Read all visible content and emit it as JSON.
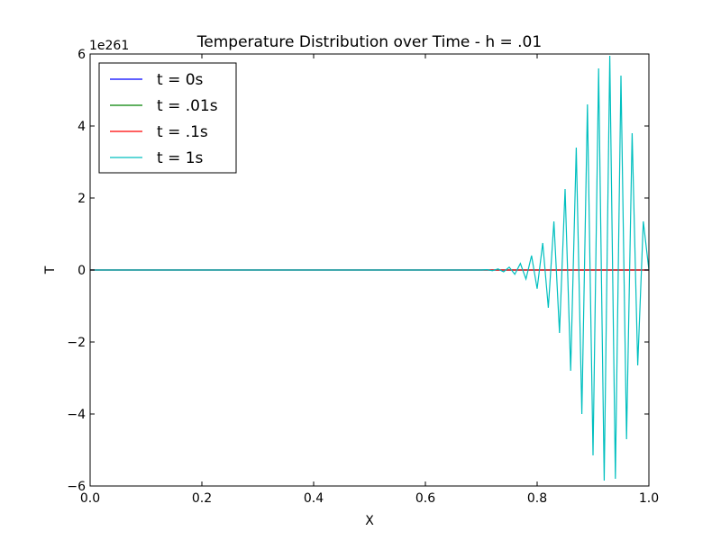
{
  "chart_data": {
    "type": "line",
    "title": "Temperature Distribution over Time - h = .01",
    "xlabel": "X",
    "ylabel": "T",
    "xlim": [
      0.0,
      1.0
    ],
    "ylim": [
      -6,
      6
    ],
    "y_offset_label": "1e261",
    "xticks": [
      "0.0",
      "0.2",
      "0.4",
      "0.6",
      "0.8",
      "1.0"
    ],
    "yticks": [
      "−6",
      "−4",
      "−2",
      "0",
      "2",
      "4",
      "6"
    ],
    "grid": false,
    "legend_position": "upper-left",
    "series": [
      {
        "name": "t = 0s",
        "color": "#0000ff",
        "x": [
          0.0,
          1.0
        ],
        "y": [
          0,
          0
        ]
      },
      {
        "name": "t = .01s",
        "color": "#008000",
        "x": [
          0.0,
          1.0
        ],
        "y": [
          0,
          0
        ]
      },
      {
        "name": "t = .1s",
        "color": "#ff0000",
        "x": [
          0.0,
          1.0
        ],
        "y": [
          0,
          0
        ]
      },
      {
        "name": "t = 1s",
        "color": "#00bfbf",
        "x": [
          0.0,
          0.7,
          0.71,
          0.72,
          0.73,
          0.74,
          0.75,
          0.76,
          0.77,
          0.78,
          0.79,
          0.8,
          0.81,
          0.82,
          0.83,
          0.84,
          0.85,
          0.86,
          0.87,
          0.88,
          0.89,
          0.9,
          0.91,
          0.92,
          0.93,
          0.94,
          0.95,
          0.96,
          0.97,
          0.98,
          0.99,
          1.0
        ],
        "y": [
          0,
          0,
          0.01,
          -0.02,
          0.03,
          -0.05,
          0.08,
          -0.12,
          0.18,
          -0.25,
          0.4,
          -0.52,
          0.75,
          -1.05,
          1.35,
          -1.75,
          2.25,
          -2.8,
          3.4,
          -4.0,
          4.6,
          -5.15,
          5.6,
          -5.85,
          5.95,
          -5.8,
          5.4,
          -4.7,
          3.8,
          -2.65,
          1.35,
          0
        ]
      }
    ]
  }
}
